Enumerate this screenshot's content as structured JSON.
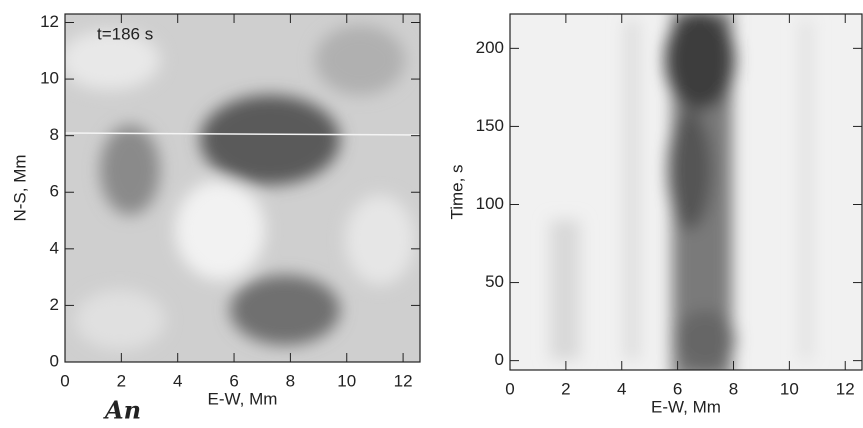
{
  "chart_data": [
    {
      "type": "image",
      "annotation": "t=186 s",
      "handwritten": "An",
      "x_label": "E-W, Mm",
      "y_label": "N-S, Mm",
      "xlim": [
        0,
        12.6
      ],
      "ylim": [
        0,
        12.3
      ],
      "xticks": [
        0,
        2,
        4,
        6,
        8,
        10,
        12
      ],
      "yticks": [
        0,
        2,
        4,
        6,
        8,
        10,
        12
      ]
    },
    {
      "type": "image",
      "x_label": "E-W, Mm",
      "y_label": "Time, s",
      "xlim": [
        0,
        12.6
      ],
      "ylim": [
        -6,
        222
      ],
      "xticks": [
        0,
        2,
        4,
        6,
        8,
        10,
        12
      ],
      "yticks": [
        0,
        50,
        100,
        150,
        200
      ]
    }
  ]
}
